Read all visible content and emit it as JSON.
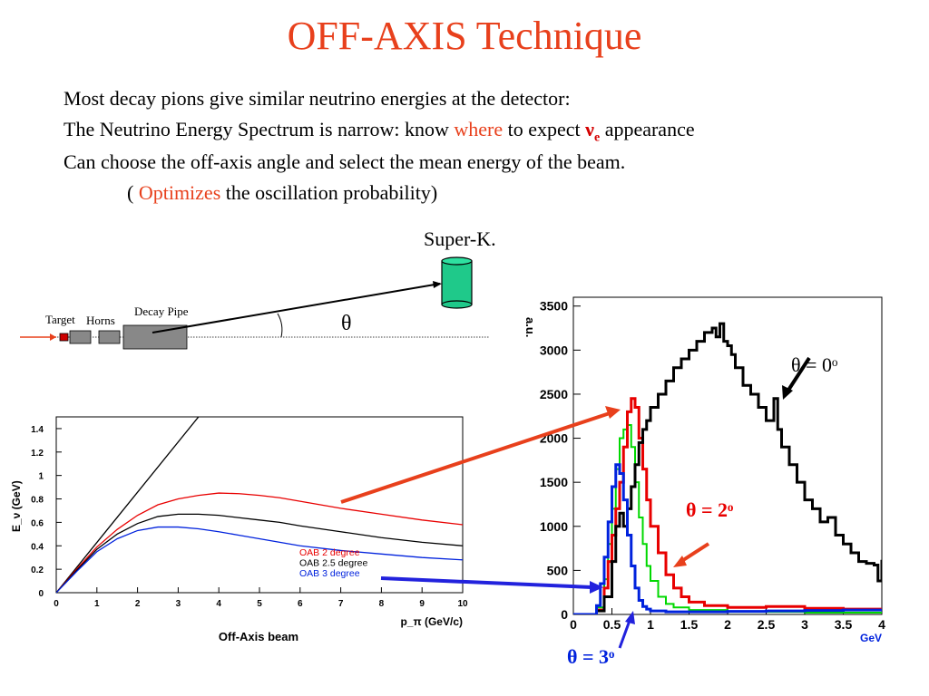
{
  "title": "OFF-AXIS Technique",
  "text_lines": {
    "line1": "Most decay pions give similar neutrino energies at the detector:",
    "line2_a": "The Neutrino Energy Spectrum is narrow: know ",
    "line2_where": "where",
    "line2_b": " to expect ",
    "line2_nu": "ν",
    "line2_sub": "e",
    "line2_c": " appearance",
    "line3": "Can choose the off-axis angle and select the mean energy of the beam.",
    "line4_a": "( ",
    "line4_opt": "Optimizes",
    "line4_b": " the oscillation probability)"
  },
  "beamline": {
    "detector_label": "Super-K.",
    "target_label": "Target",
    "horns_label": "Horns",
    "decay_pipe_label": "Decay Pipe",
    "angle_label": "θ"
  },
  "colors": {
    "title": "#e8401c",
    "highlight": "#e8401c",
    "nu_e": "#d40000",
    "red_series": "#e80000",
    "green_series": "#00d800",
    "blue_series": "#0022dd",
    "black_series": "#000000",
    "detector": "#1fc98a",
    "pipe": "#808080"
  },
  "chart_data": [
    {
      "type": "line",
      "title": "",
      "xlabel": "p_π (GeV/c)",
      "ylabel": "E_ν (GeV)",
      "footer": "Off-Axis beam",
      "xlim": [
        0,
        10
      ],
      "ylim": [
        0,
        1.5
      ],
      "xticks": [
        0,
        1,
        2,
        3,
        4,
        5,
        6,
        7,
        8,
        9,
        10
      ],
      "yticks": [
        0,
        0.2,
        0.4,
        0.6,
        0.8,
        1,
        1.2,
        1.4
      ],
      "series": [
        {
          "name": "",
          "color": "#000000",
          "x": [
            0,
            3.5
          ],
          "y": [
            0,
            1.5
          ]
        },
        {
          "name": "OAB 2 degree",
          "color": "#e80000",
          "x": [
            0,
            0.5,
            1,
            1.5,
            2,
            2.5,
            3,
            3.5,
            4,
            4.5,
            5,
            5.5,
            6,
            7,
            8,
            9,
            10
          ],
          "y": [
            0,
            0.2,
            0.39,
            0.54,
            0.66,
            0.75,
            0.8,
            0.83,
            0.85,
            0.845,
            0.83,
            0.81,
            0.78,
            0.72,
            0.67,
            0.62,
            0.58
          ]
        },
        {
          "name": "OAB 2.5 degree",
          "color": "#000000",
          "x": [
            0,
            0.5,
            1,
            1.5,
            2,
            2.5,
            3,
            3.5,
            4,
            4.5,
            5,
            5.5,
            6,
            7,
            8,
            9,
            10
          ],
          "y": [
            0,
            0.19,
            0.37,
            0.5,
            0.59,
            0.65,
            0.67,
            0.67,
            0.66,
            0.64,
            0.62,
            0.6,
            0.57,
            0.52,
            0.47,
            0.43,
            0.4
          ]
        },
        {
          "name": "OAB 3 degree",
          "color": "#0022dd",
          "x": [
            0,
            0.5,
            1,
            1.5,
            2,
            2.5,
            3,
            3.5,
            4,
            4.5,
            5,
            5.5,
            6,
            7,
            8,
            9,
            10
          ],
          "y": [
            0,
            0.18,
            0.35,
            0.46,
            0.53,
            0.56,
            0.56,
            0.545,
            0.52,
            0.49,
            0.46,
            0.43,
            0.4,
            0.36,
            0.33,
            0.3,
            0.28
          ]
        }
      ]
    },
    {
      "type": "line",
      "title": "",
      "xlabel": "GeV",
      "ylabel": "a.u.",
      "xlim": [
        0,
        4
      ],
      "ylim": [
        0,
        3600
      ],
      "xticks": [
        0,
        0.5,
        1,
        1.5,
        2,
        2.5,
        3,
        3.5,
        4
      ],
      "xtick_labels": [
        "0",
        "0.5",
        "1",
        "1.5",
        "2",
        "2.5",
        "3",
        "3.5",
        "4"
      ],
      "yticks": [
        0,
        500,
        1000,
        1500,
        2000,
        2500,
        3000,
        3500
      ],
      "step": true,
      "annotations": [
        "θ = 0ᵒ",
        "θ = 2ᵒ",
        "θ = 3ᵒ"
      ],
      "series": [
        {
          "name": "θ = 0ᵒ",
          "color": "#000000",
          "x": [
            0,
            0.3,
            0.4,
            0.5,
            0.55,
            0.6,
            0.65,
            0.7,
            0.75,
            0.8,
            0.85,
            0.9,
            0.95,
            1.0,
            1.1,
            1.2,
            1.3,
            1.4,
            1.5,
            1.6,
            1.7,
            1.8,
            1.85,
            1.9,
            1.95,
            2.0,
            2.05,
            2.1,
            2.2,
            2.3,
            2.4,
            2.5,
            2.6,
            2.65,
            2.7,
            2.8,
            2.9,
            3.0,
            3.1,
            3.2,
            3.3,
            3.4,
            3.5,
            3.6,
            3.7,
            3.8,
            3.9,
            3.95,
            4.0
          ],
          "y": [
            0,
            40,
            200,
            600,
            1000,
            1150,
            1000,
            1200,
            1450,
            1700,
            1950,
            2100,
            2200,
            2350,
            2500,
            2650,
            2800,
            2900,
            3000,
            3100,
            3200,
            3250,
            3150,
            3300,
            3100,
            3050,
            2950,
            2800,
            2600,
            2500,
            2350,
            2200,
            2450,
            2100,
            1900,
            1700,
            1500,
            1300,
            1200,
            1050,
            1100,
            900,
            800,
            700,
            600,
            580,
            560,
            380,
            620
          ]
        },
        {
          "name": "θ = 2ᵒ",
          "color": "#e80000",
          "x": [
            0,
            0.3,
            0.4,
            0.45,
            0.5,
            0.55,
            0.6,
            0.65,
            0.7,
            0.75,
            0.8,
            0.85,
            0.9,
            0.95,
            1.0,
            1.1,
            1.2,
            1.3,
            1.4,
            1.5,
            1.7,
            2.0,
            2.5,
            3.0,
            3.5,
            4.0
          ],
          "y": [
            0,
            50,
            300,
            600,
            900,
            1200,
            1500,
            1900,
            2300,
            2450,
            2350,
            2000,
            1650,
            1300,
            1000,
            700,
            450,
            300,
            200,
            140,
            100,
            80,
            90,
            70,
            60,
            60
          ]
        },
        {
          "name": "",
          "color": "#00d800",
          "x": [
            0,
            0.3,
            0.4,
            0.45,
            0.5,
            0.55,
            0.6,
            0.65,
            0.7,
            0.75,
            0.8,
            0.85,
            0.9,
            0.95,
            1.0,
            1.1,
            1.2,
            1.3,
            1.5,
            2.0,
            3.0,
            4.0
          ],
          "y": [
            0,
            80,
            400,
            800,
            1200,
            1650,
            2000,
            2100,
            2150,
            1900,
            1500,
            1100,
            800,
            550,
            380,
            200,
            120,
            80,
            50,
            30,
            20,
            20
          ]
        },
        {
          "name": "θ = 3ᵒ",
          "color": "#0022dd",
          "x": [
            0,
            0.3,
            0.35,
            0.4,
            0.45,
            0.5,
            0.55,
            0.6,
            0.65,
            0.7,
            0.75,
            0.8,
            0.85,
            0.9,
            0.95,
            1.0,
            1.2,
            1.5,
            2.0,
            2.5,
            3.0,
            3.5,
            4.0
          ],
          "y": [
            0,
            100,
            350,
            650,
            1050,
            1450,
            1700,
            1600,
            1300,
            900,
            550,
            300,
            160,
            90,
            60,
            40,
            30,
            30,
            35,
            40,
            45,
            50,
            50
          ]
        }
      ]
    }
  ]
}
